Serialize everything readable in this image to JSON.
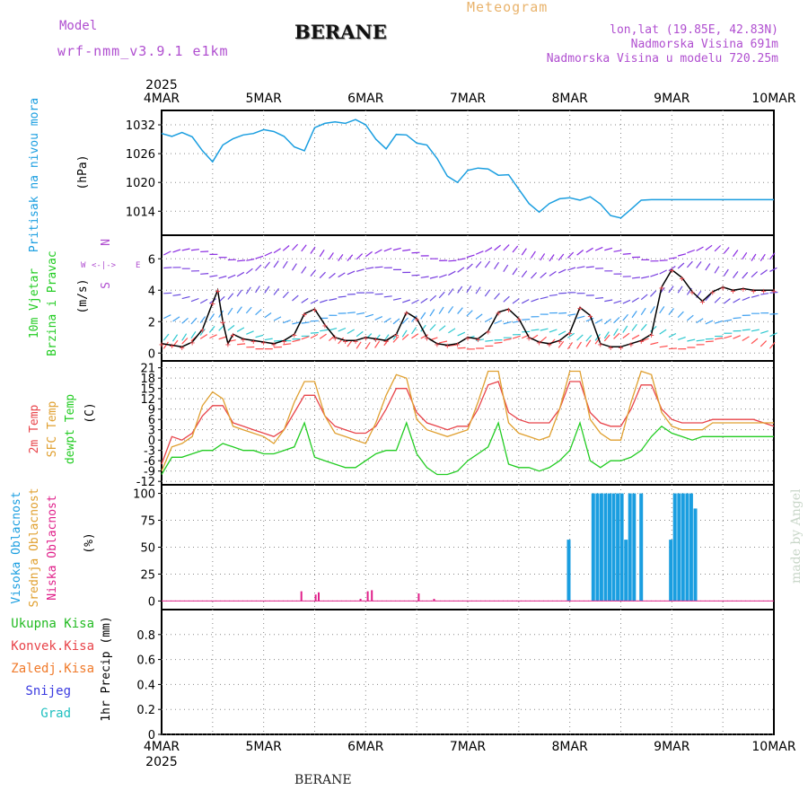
{
  "header": {
    "model_label": "Model",
    "model_value": "wrf-nmm_v3.9.1 e1km",
    "station": "BERANE",
    "title": "Meteogram",
    "location": "lon,lat (19.85E, 42.83N)",
    "elevation": "Nadmorska Visina 691m",
    "model_elevation": "Nadmorska Visina u modelu 720.25m",
    "credit": "made by Angel"
  },
  "footer": {
    "station": "BERANE"
  },
  "colors": {
    "pressure": "#1a9ee0",
    "temp2m": "#e8444a",
    "sfc_temp": "#e0a030",
    "dewpoint": "#22cc22",
    "high_cloud": "#1a9ee0",
    "mid_cloud": "#e0a030",
    "low_cloud": "#e0208a",
    "grid": "#888888",
    "label_purple": "#b04fd0"
  },
  "chart_data": [
    {
      "id": "pressure",
      "type": "line",
      "ylabel_left": "Pritisak na nivou mora",
      "unit": "(hPa)",
      "ylim": [
        1009,
        1035
      ],
      "yticks": [
        1014,
        1020,
        1026,
        1032
      ],
      "x_year_top": "2025",
      "x_year_bottom": "2025",
      "x_ticks": [
        "4MAR",
        "5MAR",
        "6MAR",
        "7MAR",
        "8MAR",
        "9MAR",
        "10MAR"
      ],
      "x": [
        0,
        0.1,
        0.2,
        0.3,
        0.4,
        0.5,
        0.6,
        0.7,
        0.8,
        0.9,
        1.0,
        1.1,
        1.2,
        1.3,
        1.4,
        1.5,
        1.6,
        1.7,
        1.8,
        1.9,
        2.0,
        2.1,
        2.2,
        2.3,
        2.4,
        2.5,
        2.6,
        2.7,
        2.8,
        2.9,
        3.0,
        3.1,
        3.2,
        3.3,
        3.4,
        3.5,
        3.6,
        3.7,
        3.8,
        3.9,
        4.0,
        4.1,
        4.2,
        4.3,
        4.4,
        4.5,
        4.6,
        4.7,
        4.8,
        4.9,
        5.0,
        5.1,
        5.2,
        5.3,
        5.4,
        5.5,
        5.6,
        5.7,
        5.8,
        5.9,
        6.0
      ],
      "values": [
        1030.2,
        1029.6,
        1030.4,
        1029.5,
        1026.6,
        1024.3,
        1027.8,
        1029.1,
        1029.9,
        1030.2,
        1031.0,
        1030.6,
        1029.6,
        1027.4,
        1026.6,
        1031.4,
        1032.3,
        1032.6,
        1032.3,
        1033.1,
        1032.0,
        1029.0,
        1027.0,
        1030.0,
        1029.9,
        1028.2,
        1027.8,
        1025.0,
        1021.3,
        1020.0,
        1022.5,
        1023.0,
        1022.8,
        1021.5,
        1021.6,
        1018.6,
        1015.6,
        1013.8,
        1015.6,
        1016.6,
        1016.8,
        1016.3,
        1017.0,
        1015.5,
        1013.1,
        1012.6,
        1014.4,
        1016.3,
        1016.4,
        1016.4,
        1016.4,
        1016.4,
        1016.4,
        1016.4,
        1016.4,
        1016.4,
        1016.4,
        1016.4,
        1016.4,
        1016.4,
        1016.4
      ]
    },
    {
      "id": "wind",
      "type": "line",
      "ylabel_left": [
        "10m Vjetar",
        "Brzina i Pravac"
      ],
      "unit": "(m/s)",
      "compass": {
        "n": "N",
        "e": "E",
        "w": "W",
        "s": "S"
      },
      "ylim": [
        -0.5,
        7.5
      ],
      "yticks": [
        0,
        2,
        4,
        6
      ],
      "x": [
        0,
        0.1,
        0.2,
        0.3,
        0.4,
        0.5,
        0.55,
        0.6,
        0.65,
        0.7,
        0.8,
        0.9,
        1.0,
        1.1,
        1.2,
        1.3,
        1.4,
        1.5,
        1.6,
        1.7,
        1.8,
        1.9,
        2.0,
        2.1,
        2.2,
        2.3,
        2.4,
        2.5,
        2.6,
        2.7,
        2.8,
        2.9,
        3.0,
        3.1,
        3.2,
        3.3,
        3.4,
        3.5,
        3.6,
        3.7,
        3.8,
        3.9,
        4.0,
        4.1,
        4.2,
        4.3,
        4.4,
        4.5,
        4.6,
        4.7,
        4.8,
        4.9,
        5.0,
        5.1,
        5.2,
        5.3,
        5.4,
        5.5,
        5.6,
        5.7,
        5.8,
        5.9,
        6.0
      ],
      "values": [
        0.6,
        0.5,
        0.4,
        0.7,
        1.5,
        3.2,
        4.0,
        2.0,
        0.6,
        1.2,
        0.9,
        0.8,
        0.7,
        0.6,
        0.8,
        1.2,
        2.5,
        2.8,
        1.8,
        1.0,
        0.8,
        0.8,
        1.0,
        0.9,
        0.8,
        1.2,
        2.6,
        2.2,
        1.0,
        0.6,
        0.5,
        0.6,
        1.0,
        0.9,
        1.4,
        2.6,
        2.8,
        2.2,
        1.0,
        0.7,
        0.6,
        0.8,
        1.3,
        2.9,
        2.4,
        0.6,
        0.4,
        0.4,
        0.6,
        0.8,
        1.2,
        4.2,
        5.3,
        4.8,
        3.9,
        3.3,
        3.9,
        4.2,
        4.0,
        4.1,
        4.0,
        4.0,
        4.0
      ]
    },
    {
      "id": "temperature",
      "type": "line",
      "ylabel_left": [
        "2m Temp",
        "SFC Temp",
        "dewpt Temp"
      ],
      "unit": "(C)",
      "ylim": [
        -13,
        23
      ],
      "yticks": [
        -12,
        -9,
        -6,
        -3,
        0,
        3,
        6,
        9,
        12,
        15,
        18,
        21
      ],
      "x": [
        0,
        0.1,
        0.2,
        0.3,
        0.4,
        0.5,
        0.6,
        0.7,
        0.8,
        0.9,
        1.0,
        1.1,
        1.2,
        1.3,
        1.4,
        1.5,
        1.6,
        1.7,
        1.8,
        1.9,
        2.0,
        2.1,
        2.2,
        2.3,
        2.4,
        2.5,
        2.6,
        2.7,
        2.8,
        2.9,
        3.0,
        3.1,
        3.2,
        3.3,
        3.4,
        3.5,
        3.6,
        3.7,
        3.8,
        3.9,
        4.0,
        4.1,
        4.2,
        4.3,
        4.4,
        4.5,
        4.6,
        4.7,
        4.8,
        4.9,
        5.0,
        5.1,
        5.2,
        5.3,
        5.4,
        5.5,
        5.6,
        5.7,
        5.8,
        5.9,
        6.0
      ],
      "series": [
        {
          "name": "2m Temp",
          "values": [
            -7,
            1,
            0,
            2,
            7,
            10,
            10,
            5,
            4,
            3,
            2,
            1,
            3,
            8,
            13,
            13,
            7,
            4,
            3,
            2,
            2,
            4,
            9,
            15,
            15,
            8,
            5,
            4,
            3,
            4,
            4,
            9,
            16,
            17,
            8,
            6,
            5,
            5,
            5,
            9,
            17,
            17,
            8,
            5,
            4,
            4,
            9,
            16,
            16,
            9,
            6,
            5,
            5,
            5,
            6,
            6,
            6,
            6,
            6,
            5,
            4
          ]
        },
        {
          "name": "SFC Temp",
          "values": [
            -9,
            -2,
            -1,
            1,
            10,
            14,
            12,
            4,
            3,
            2,
            1,
            -1,
            3,
            11,
            17,
            17,
            7,
            2,
            1,
            0,
            -1,
            5,
            13,
            19,
            18,
            6,
            3,
            2,
            1,
            2,
            3,
            11,
            20,
            20,
            5,
            2,
            1,
            0,
            1,
            9,
            20,
            20,
            6,
            2,
            0,
            0,
            11,
            20,
            19,
            8,
            4,
            3,
            3,
            3,
            5,
            5,
            5,
            5,
            5,
            5,
            5
          ]
        },
        {
          "name": "dewpt Temp",
          "values": [
            -10,
            -5,
            -5,
            -4,
            -3,
            -3,
            -1,
            -2,
            -3,
            -3,
            -4,
            -4,
            -3,
            -2,
            5,
            -5,
            -6,
            -7,
            -8,
            -8,
            -6,
            -4,
            -3,
            -3,
            5,
            -4,
            -8,
            -10,
            -10,
            -9,
            -6,
            -4,
            -2,
            5,
            -7,
            -8,
            -8,
            -9,
            -8,
            -6,
            -3,
            5,
            -6,
            -8,
            -6,
            -6,
            -5,
            -3,
            1,
            4,
            2,
            1,
            0,
            1,
            1,
            1,
            1,
            1,
            1,
            1,
            1
          ]
        }
      ]
    },
    {
      "id": "clouds",
      "type": "bar",
      "ylabel_left": [
        "Visoka Oblacnost",
        "Srednja Oblacnost",
        "Niska Oblacnost"
      ],
      "unit": "(%)",
      "ylim": [
        -8,
        108
      ],
      "yticks": [
        0,
        25,
        50,
        75,
        100
      ],
      "series": [
        {
          "name": "Visoka Oblacnost",
          "x": [
            3.99,
            4.23,
            4.27,
            4.31,
            4.35,
            4.39,
            4.43,
            4.47,
            4.51,
            4.55,
            4.59,
            4.63,
            4.7,
            4.99,
            5.03,
            5.07,
            5.11,
            5.15,
            5.19,
            5.23
          ],
          "values": [
            57,
            100,
            100,
            100,
            100,
            100,
            100,
            100,
            100,
            57,
            100,
            100,
            100,
            57,
            100,
            100,
            100,
            100,
            100,
            86
          ]
        },
        {
          "name": "Niska Oblacnost",
          "x": [
            1.37,
            1.51,
            1.54,
            1.95,
            2.02,
            2.06,
            2.52,
            2.67
          ],
          "values": [
            9,
            6,
            8,
            2,
            9,
            10,
            7,
            2
          ]
        }
      ]
    },
    {
      "id": "precip",
      "type": "line",
      "ylabel_left": [
        "Ukupna Kisa",
        "Konvek.Kisa",
        "Zaledj.Kisa",
        "Snijeg",
        "Grad"
      ],
      "unit": "1hr Precip (mm)",
      "ylim": [
        0,
        1.0
      ],
      "yticks": [
        0,
        0.2,
        0.4,
        0.6,
        0.8
      ],
      "series": []
    }
  ]
}
